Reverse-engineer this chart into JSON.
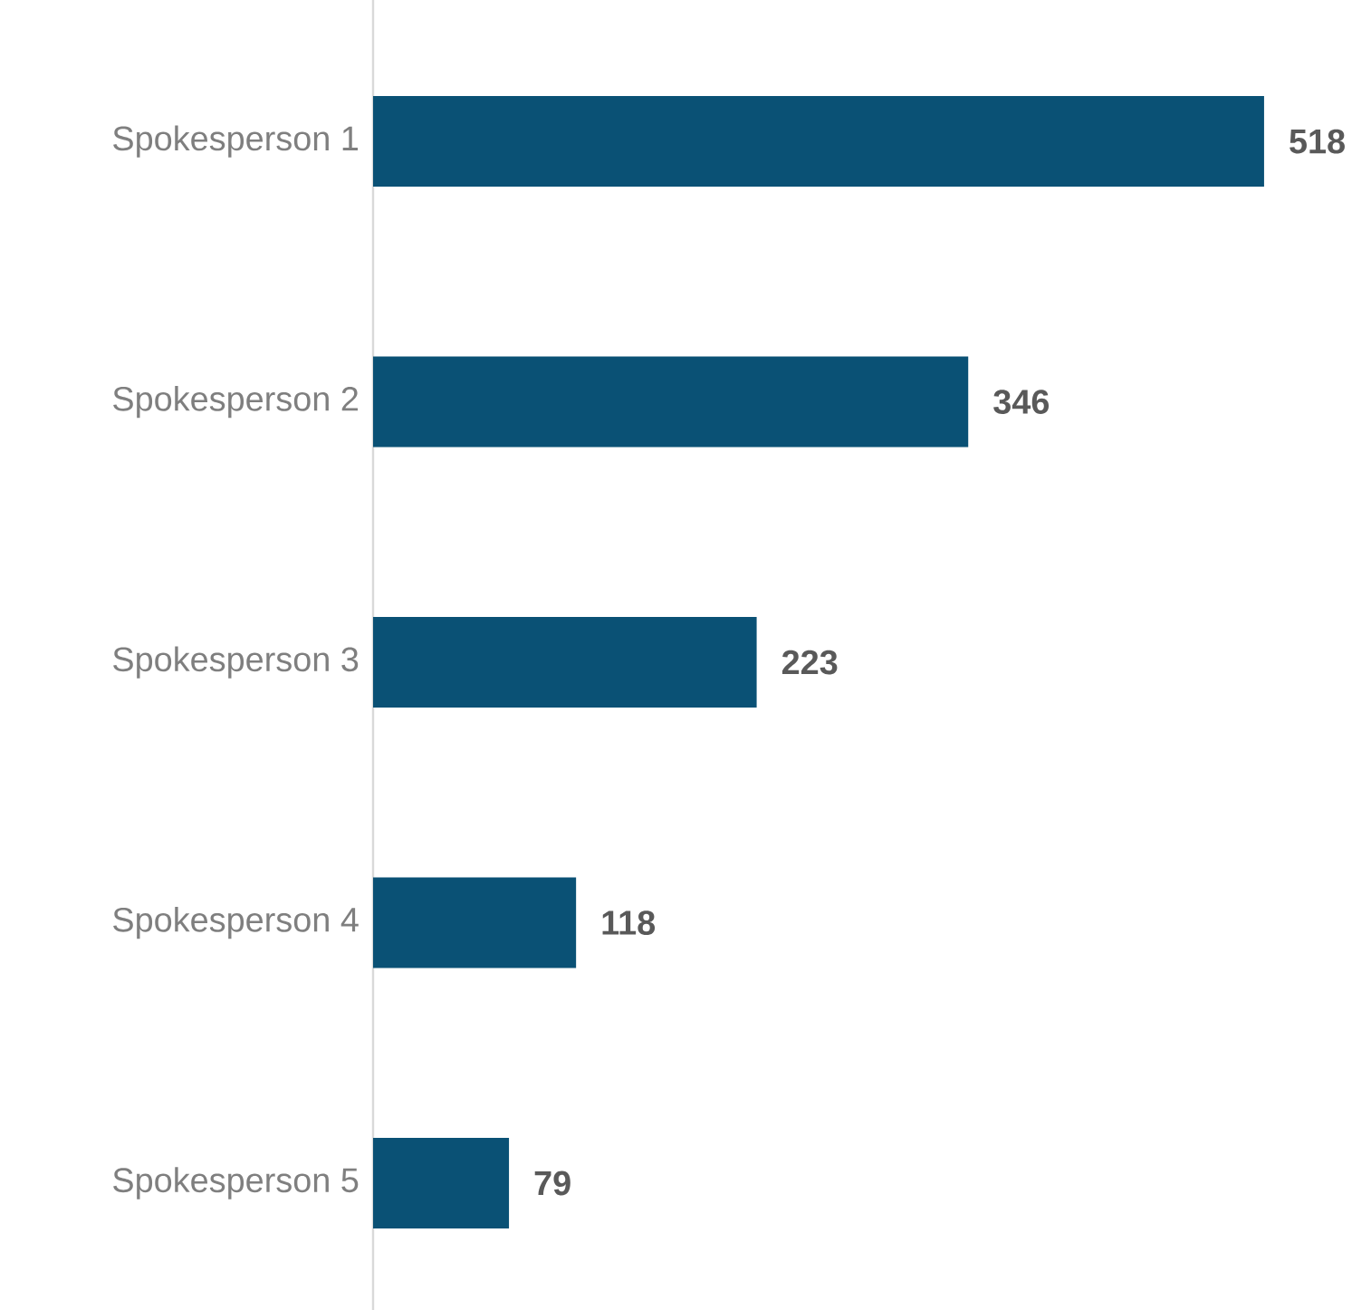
{
  "chart_data": {
    "type": "bar",
    "orientation": "horizontal",
    "categories": [
      "Spokesperson 1",
      "Spokesperson 2",
      "Spokesperson 3",
      "Spokesperson 4",
      "Spokesperson 5"
    ],
    "values": [
      518,
      346,
      223,
      118,
      79
    ],
    "color": "#0a5175",
    "data_labels": true
  }
}
